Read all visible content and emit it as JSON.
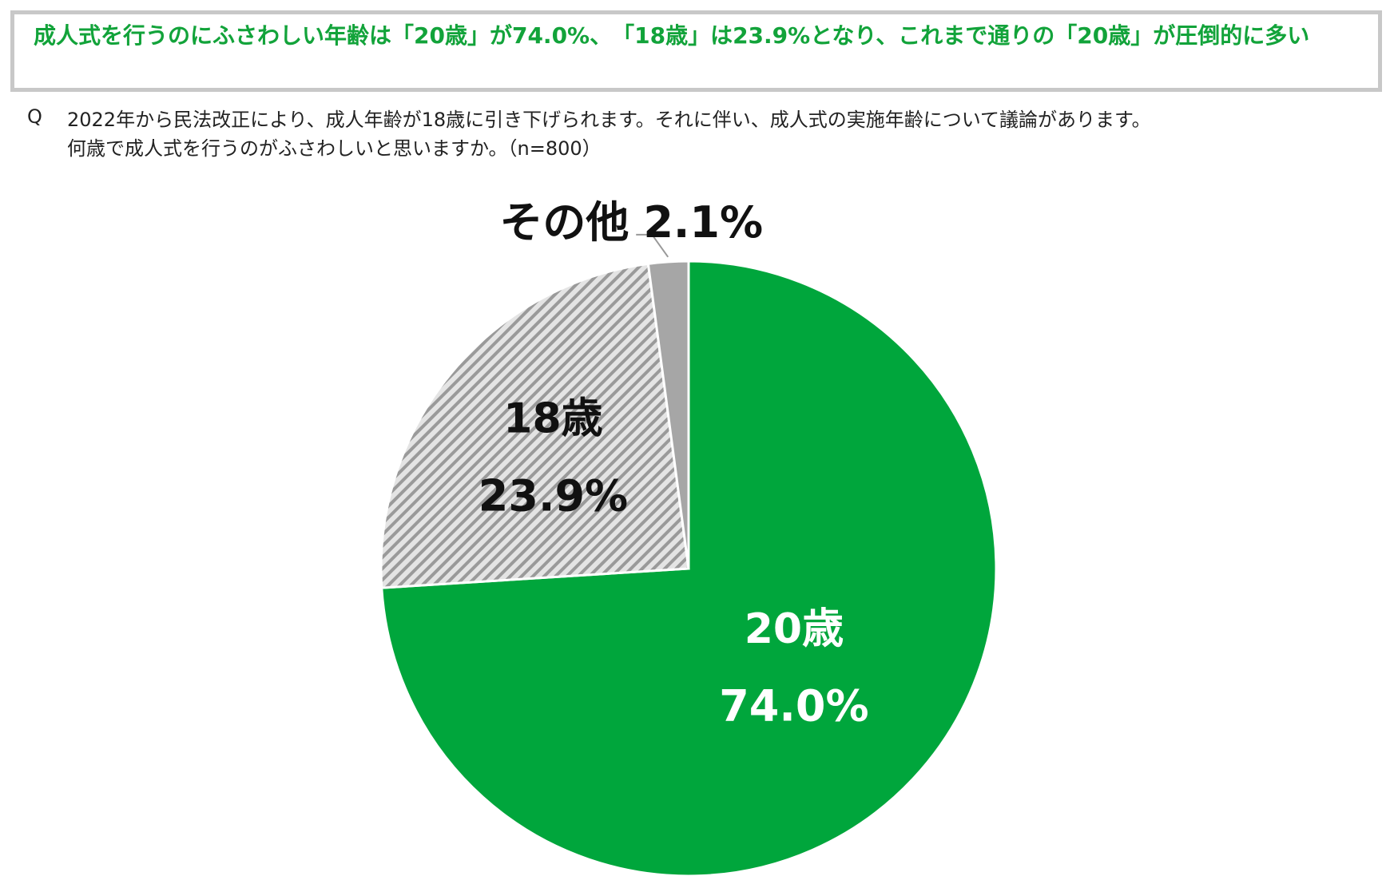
{
  "header": {
    "title": "成人式を行うのにふさわしい年齢は「20歳」が74.0%、　「18歳」は23.9%となり、これまで通りの「20歳」が圧倒的に多い"
  },
  "question": {
    "label": "Q",
    "lines": [
      "2022年から民法改正により、成人年齢が18歳に引き下げられます。それに伴い、成人式の実施年齢について議論があります。",
      "何歳で成人式を行うのがふさわしいと思いますか。（n=800）"
    ]
  },
  "chart_data": {
    "type": "pie",
    "categories": [
      "20歳",
      "18歳",
      "その他"
    ],
    "values": [
      74.0,
      23.9,
      2.1
    ],
    "value_labels": [
      "74.0%",
      "23.9%",
      "2.1%"
    ],
    "colors": [
      "#00a63c",
      "url(#hatch)",
      "#a6a6a6"
    ]
  }
}
